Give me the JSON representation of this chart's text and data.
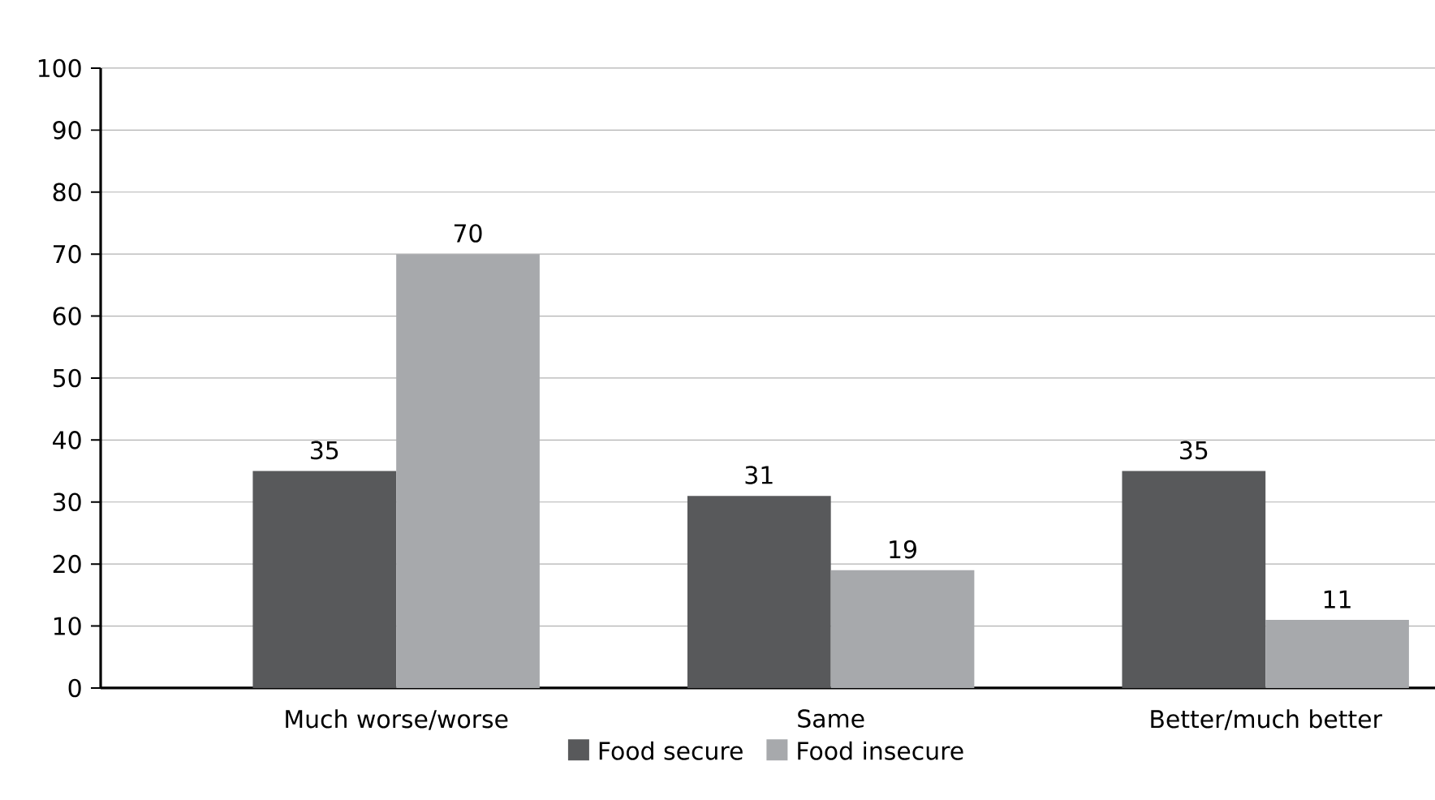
{
  "chart_data": {
    "type": "bar",
    "categories": [
      "Much worse/worse",
      "Same",
      "Better/much better"
    ],
    "series": [
      {
        "name": "Food secure",
        "color": "#58595b",
        "values": [
          35,
          31,
          35
        ]
      },
      {
        "name": "Food insecure",
        "color": "#a7a9ac",
        "values": [
          70,
          19,
          11
        ]
      }
    ],
    "ylim": [
      0,
      100
    ],
    "yticks": [
      0,
      10,
      20,
      30,
      40,
      50,
      60,
      70,
      80,
      90,
      100
    ],
    "grid": "y",
    "legend": "bottom",
    "data_labels": true
  }
}
